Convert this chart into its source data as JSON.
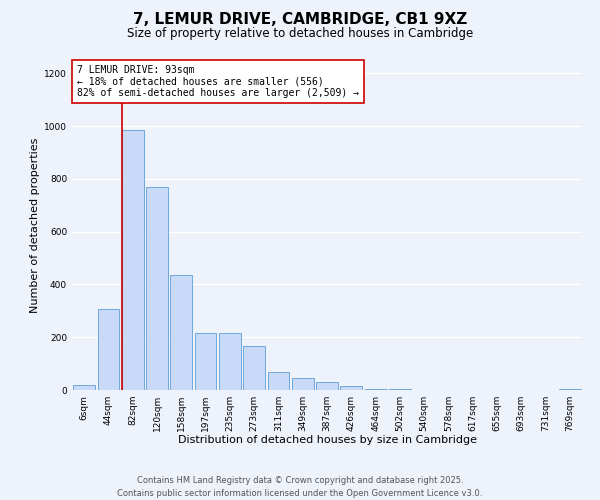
{
  "title": "7, LEMUR DRIVE, CAMBRIDGE, CB1 9XZ",
  "subtitle": "Size of property relative to detached houses in Cambridge",
  "xlabel": "Distribution of detached houses by size in Cambridge",
  "ylabel": "Number of detached properties",
  "bin_labels": [
    "6sqm",
    "44sqm",
    "82sqm",
    "120sqm",
    "158sqm",
    "197sqm",
    "235sqm",
    "273sqm",
    "311sqm",
    "349sqm",
    "387sqm",
    "426sqm",
    "464sqm",
    "502sqm",
    "540sqm",
    "578sqm",
    "617sqm",
    "655sqm",
    "693sqm",
    "731sqm",
    "769sqm"
  ],
  "bar_heights": [
    20,
    305,
    985,
    770,
    435,
    215,
    215,
    165,
    70,
    45,
    30,
    15,
    5,
    2,
    1,
    0,
    0,
    0,
    0,
    0,
    3
  ],
  "bar_color": "#c9daf8",
  "bar_edge_color": "#6fa8dc",
  "vline_x_index": 2,
  "vline_color": "#cc0000",
  "annotation_title": "7 LEMUR DRIVE: 93sqm",
  "annotation_line1": "← 18% of detached houses are smaller (556)",
  "annotation_line2": "82% of semi-detached houses are larger (2,509) →",
  "annotation_box_color": "#ffffff",
  "annotation_box_edge": "#cc0000",
  "ylim": [
    0,
    1250
  ],
  "yticks": [
    0,
    200,
    400,
    600,
    800,
    1000,
    1200
  ],
  "footer_line1": "Contains HM Land Registry data © Crown copyright and database right 2025.",
  "footer_line2": "Contains public sector information licensed under the Open Government Licence v3.0.",
  "background_color": "#eef2fb",
  "grid_color": "#ffffff",
  "title_fontsize": 11,
  "subtitle_fontsize": 8.5,
  "axis_label_fontsize": 8,
  "tick_fontsize": 6.5,
  "annotation_fontsize": 7,
  "footer_fontsize": 6
}
